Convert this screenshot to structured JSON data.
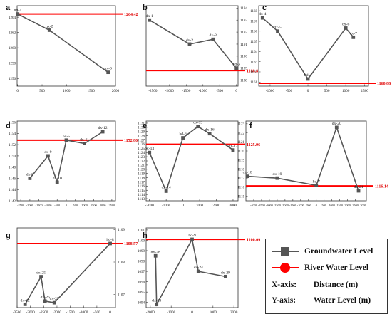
{
  "legend": {
    "groundwater_label": "Groundwater Level",
    "river_label": "River Water Level",
    "x_axis_key": "X-axis:",
    "x_axis_value": "Distance (m)",
    "y_axis_key": "Y-axis:",
    "y_axis_value": "Water Level (m)",
    "groundwater_color": "#555555",
    "river_color": "#ff0000"
  },
  "chart_data": [
    {
      "panel": "a",
      "type": "line",
      "points": [
        {
          "x": 0,
          "y": 1264.42,
          "label": "hd-2"
        },
        {
          "x": 650,
          "y": 1262.3,
          "label": "qx-2"
        },
        {
          "x": 1850,
          "y": 1256.8,
          "label": "qx-3"
        }
      ],
      "river_level": 1264.42,
      "river_label": "1264.42",
      "xlim": [
        -10,
        2000
      ],
      "ylim": [
        1255,
        1265.5
      ],
      "xticks": [
        0,
        500,
        1000,
        1500,
        2000
      ],
      "yticks": [
        1256,
        1258,
        1260,
        1262,
        1264
      ],
      "grid": false
    },
    {
      "panel": "b",
      "type": "line",
      "points": [
        {
          "x": -2600,
          "y": 1193.0,
          "label": "dx-1"
        },
        {
          "x": -1400,
          "y": 1191.0,
          "label": "dx-2"
        },
        {
          "x": -700,
          "y": 1191.4,
          "label": "dx-3"
        },
        {
          "x": 0,
          "y": 1189.0,
          "label": "hd-3"
        }
      ],
      "river_level": 1188.8,
      "river_label": "1188.8",
      "xlim": [
        -2700,
        50
      ],
      "ylim": [
        1187.5,
        1194.2
      ],
      "xticks": [
        -2500,
        -2000,
        -1500,
        -1000,
        -500,
        0
      ],
      "yticks": [
        1188,
        1189,
        1190,
        1191,
        1192,
        1193,
        1194
      ],
      "grid": false
    },
    {
      "panel": "c",
      "type": "line",
      "points": [
        {
          "x": -1200,
          "y": 1167.3,
          "label": "dx-4"
        },
        {
          "x": -800,
          "y": 1166.0,
          "label": "dx-5"
        },
        {
          "x": 0,
          "y": 1161.3,
          "label": "hd-4"
        },
        {
          "x": 1000,
          "y": 1166.3,
          "label": "dx-6"
        },
        {
          "x": 1200,
          "y": 1165.4,
          "label": "dx-7"
        }
      ],
      "river_level": 1160.88,
      "river_label": "1160.88",
      "xlim": [
        -1300,
        1600
      ],
      "ylim": [
        1160.6,
        1168.5
      ],
      "xticks": [
        -1500,
        -1000,
        -500,
        0,
        500,
        1000,
        1500
      ],
      "yticks": [
        1161,
        1162,
        1163,
        1164,
        1165,
        1166,
        1167,
        1168
      ],
      "grid": false
    },
    {
      "panel": "d",
      "type": "line",
      "points": [
        {
          "x": -2000,
          "y": 1146.0,
          "label": "dx-8"
        },
        {
          "x": -1000,
          "y": 1150.0,
          "label": "dx-9"
        },
        {
          "x": -500,
          "y": 1145.3,
          "label": "dx-10"
        },
        {
          "x": 0,
          "y": 1152.8,
          "label": "hd-5"
        },
        {
          "x": 1000,
          "y": 1152.2,
          "label": "dx-11"
        },
        {
          "x": 2000,
          "y": 1154.3,
          "label": "dx-12"
        }
      ],
      "river_level": 1152.8,
      "river_label": "1152.80",
      "xlim": [
        -2700,
        2700
      ],
      "ylim": [
        1142,
        1156.2
      ],
      "xticks": [
        -2500,
        -2000,
        -1500,
        -1000,
        -500,
        0,
        500,
        1000,
        1500,
        2000,
        2500
      ],
      "yticks": [
        1142,
        1144,
        1146,
        1148,
        1150,
        1152,
        1154,
        1156
      ],
      "grid": false
    },
    {
      "panel": "e",
      "type": "line",
      "points": [
        {
          "x": -2000,
          "y": 1124.0,
          "label": "dx-13"
        },
        {
          "x": -1000,
          "y": 1114.8,
          "label": "dx-14"
        },
        {
          "x": 0,
          "y": 1127.5,
          "label": "hd-6"
        },
        {
          "x": 900,
          "y": 1130.2,
          "label": "dx-15"
        },
        {
          "x": 1600,
          "y": 1128.5,
          "label": "dx-16"
        },
        {
          "x": 3000,
          "y": 1124.6,
          "label": "dx-17"
        }
      ],
      "river_level": 1125.96,
      "river_label": "1125.96",
      "xlim": [
        -2200,
        3300
      ],
      "ylim": [
        1112.5,
        1131.5
      ],
      "xticks": [
        -2000,
        -1000,
        0,
        1000,
        2000,
        3000
      ],
      "yticks": [
        1113,
        1114,
        1115,
        1116,
        1117,
        1118,
        1119,
        1120,
        1121,
        1122,
        1123,
        1124,
        1125,
        1126,
        1127,
        1128,
        1129,
        1130,
        1131
      ],
      "grid": false
    },
    {
      "panel": "f",
      "type": "line",
      "points": [
        {
          "x": -4400,
          "y": 1117.2,
          "label": "dx-18"
        },
        {
          "x": -2500,
          "y": 1117.0,
          "label": "dx-19"
        },
        {
          "x": 0,
          "y": 1116.2,
          "label": "hd-7"
        },
        {
          "x": 1300,
          "y": 1122.6,
          "label": "dx-20"
        },
        {
          "x": 2700,
          "y": 1115.6,
          "label": "dx-21"
        }
      ],
      "river_level": 1116.14,
      "river_label": "1116.14",
      "xlim": [
        -4500,
        3200
      ],
      "ylim": [
        1114.5,
        1123.3
      ],
      "xticks": [
        -4000,
        -3500,
        -3000,
        -2500,
        -2000,
        -1500,
        -1000,
        -500,
        0,
        500,
        1000,
        1500,
        2000,
        2500,
        3000
      ],
      "yticks": [
        1115,
        1116,
        1117,
        1118,
        1119,
        1120,
        1121,
        1122,
        1123
      ],
      "grid": false
    },
    {
      "panel": "g",
      "type": "line",
      "points": [
        {
          "x": -3200,
          "y": 1106.7,
          "label": "dx-22"
        },
        {
          "x": -2600,
          "y": 1107.55,
          "label": "dx-25"
        },
        {
          "x": -2450,
          "y": 1106.8,
          "label": "dx-26"
        },
        {
          "x": -2100,
          "y": 1106.75,
          "label": "dx-27"
        },
        {
          "x": 0,
          "y": 1108.57,
          "label": "hd-8"
        }
      ],
      "river_level": 1108.57,
      "river_label": "1108.57",
      "xlim": [
        -3500,
        200
      ],
      "ylim": [
        1106.6,
        1109.05
      ],
      "xticks": [
        -3500,
        -3000,
        -2500,
        -2000,
        -1500,
        -1000,
        -500,
        0
      ],
      "yticks": [
        1107,
        1108,
        1109
      ],
      "grid": false
    },
    {
      "panel": "h",
      "type": "line",
      "points": [
        {
          "x": -1750,
          "y": 1098.5,
          "label": "dx-28"
        },
        {
          "x": -1700,
          "y": 1093.8,
          "label": "dx-23"
        },
        {
          "x": 0,
          "y": 1100.1,
          "label": "hd-9"
        },
        {
          "x": 300,
          "y": 1097.0,
          "label": "dx-24"
        },
        {
          "x": 1600,
          "y": 1096.5,
          "label": "dx-29"
        }
      ],
      "river_level": 1100.09,
      "river_label": "1100.09",
      "xlim": [
        -2200,
        2200
      ],
      "ylim": [
        1093.5,
        1101.2
      ],
      "xticks": [
        -2000,
        -1000,
        0,
        1000,
        2000
      ],
      "yticks": [
        1094,
        1095,
        1096,
        1097,
        1098,
        1099,
        1100,
        1101
      ],
      "grid": false
    }
  ]
}
